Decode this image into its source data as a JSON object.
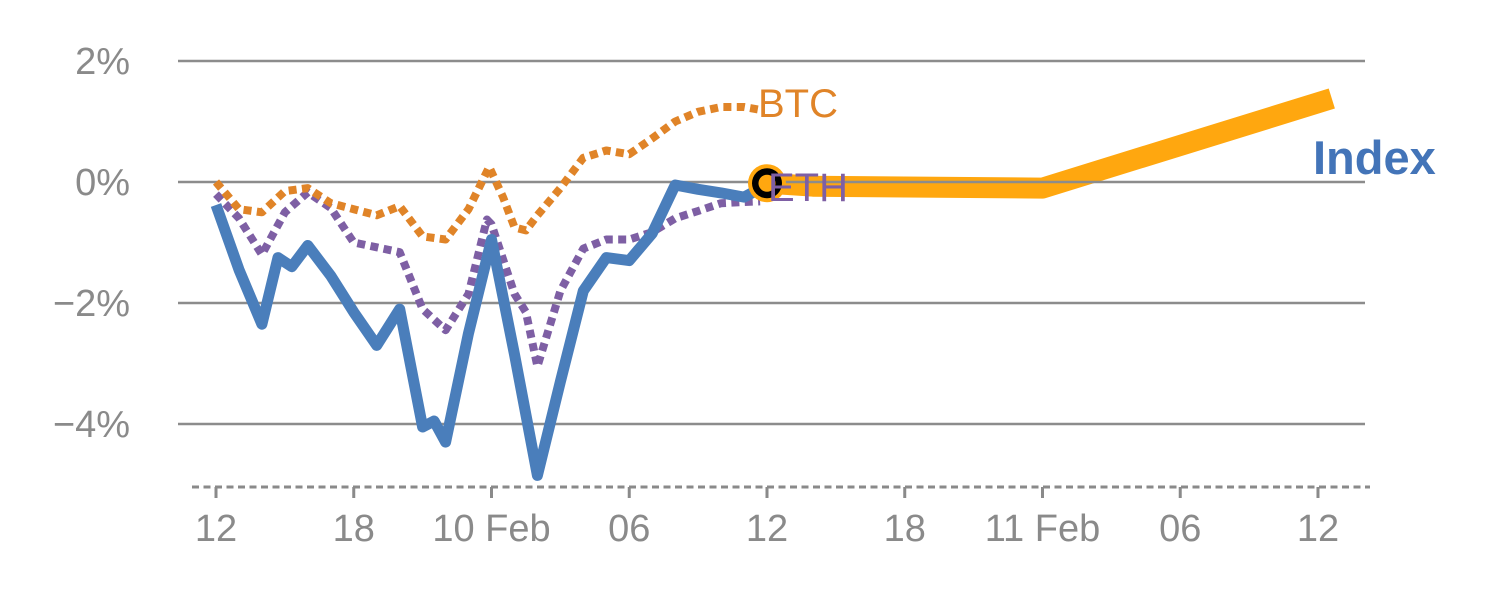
{
  "chart_data": {
    "type": "line",
    "title": "",
    "xlabel": "",
    "ylabel": "",
    "x_unit": "hours from first tick (12:00 9 Feb), 6h per major tick",
    "ylim": [
      -5.2,
      2.4
    ],
    "xlim": [
      0,
      48.6
    ],
    "grid": "horizontal",
    "legend_position": "end-of-line labels",
    "y_ticks": [
      {
        "v": 2,
        "label": "2%"
      },
      {
        "v": 0,
        "label": "0%"
      },
      {
        "v": -2,
        "label": "−2%"
      },
      {
        "v": -4,
        "label": "−4%"
      }
    ],
    "x_ticks": [
      {
        "t": 0,
        "label": "12"
      },
      {
        "t": 6,
        "label": "18"
      },
      {
        "t": 12,
        "label": "10 Feb"
      },
      {
        "t": 18,
        "label": "06"
      },
      {
        "t": 24,
        "label": "12"
      },
      {
        "t": 30,
        "label": "18"
      },
      {
        "t": 36,
        "label": "11 Feb"
      },
      {
        "t": 42,
        "label": "06"
      },
      {
        "t": 48,
        "label": "12"
      }
    ],
    "series": [
      {
        "name": "Index",
        "style": "solid",
        "color": "#4A7EBB",
        "width": 11,
        "points": [
          [
            0,
            -0.38
          ],
          [
            1,
            -1.45
          ],
          [
            2,
            -2.35
          ],
          [
            2.7,
            -1.25
          ],
          [
            3.3,
            -1.4
          ],
          [
            4,
            -1.05
          ],
          [
            5,
            -1.55
          ],
          [
            6,
            -2.15
          ],
          [
            7,
            -2.7
          ],
          [
            8,
            -2.1
          ],
          [
            9,
            -4.05
          ],
          [
            9.5,
            -3.95
          ],
          [
            10,
            -4.3
          ],
          [
            11,
            -2.5
          ],
          [
            12,
            -0.95
          ],
          [
            13,
            -2.85
          ],
          [
            14,
            -4.85
          ],
          [
            15,
            -3.3
          ],
          [
            16,
            -1.8
          ],
          [
            17,
            -1.25
          ],
          [
            18,
            -1.3
          ],
          [
            19,
            -0.85
          ],
          [
            20,
            -0.05
          ],
          [
            21,
            -0.12
          ],
          [
            22,
            -0.18
          ],
          [
            23,
            -0.25
          ],
          [
            24,
            -0.05
          ]
        ]
      },
      {
        "name": "BTC",
        "style": "dotted",
        "color": "#E08428",
        "width": 8,
        "points": [
          [
            0,
            0
          ],
          [
            1,
            -0.45
          ],
          [
            2,
            -0.5
          ],
          [
            3,
            -0.15
          ],
          [
            4,
            -0.1
          ],
          [
            5,
            -0.35
          ],
          [
            6,
            -0.45
          ],
          [
            7,
            -0.55
          ],
          [
            8,
            -0.4
          ],
          [
            9,
            -0.9
          ],
          [
            10,
            -0.95
          ],
          [
            11,
            -0.45
          ],
          [
            11.9,
            0.25
          ],
          [
            12.5,
            -0.25
          ],
          [
            13,
            -0.75
          ],
          [
            13.5,
            -0.8
          ],
          [
            14,
            -0.55
          ],
          [
            15,
            -0.1
          ],
          [
            16,
            0.4
          ],
          [
            17,
            0.52
          ],
          [
            18,
            0.46
          ],
          [
            19,
            0.72
          ],
          [
            20,
            1.0
          ],
          [
            21,
            1.16
          ],
          [
            22,
            1.24
          ],
          [
            23,
            1.24
          ],
          [
            23.6,
            1.2
          ]
        ]
      },
      {
        "name": "ETH",
        "style": "dotted",
        "color": "#7E5FA4",
        "width": 8,
        "points": [
          [
            0,
            -0.2
          ],
          [
            1,
            -0.6
          ],
          [
            2,
            -1.2
          ],
          [
            3,
            -0.5
          ],
          [
            4,
            -0.17
          ],
          [
            5,
            -0.43
          ],
          [
            6,
            -1.0
          ],
          [
            7,
            -1.08
          ],
          [
            8,
            -1.16
          ],
          [
            9,
            -2.1
          ],
          [
            10,
            -2.45
          ],
          [
            11,
            -1.85
          ],
          [
            11.8,
            -0.62
          ],
          [
            12,
            -0.7
          ],
          [
            13,
            -1.85
          ],
          [
            13.5,
            -2.15
          ],
          [
            14,
            -3.05
          ],
          [
            15,
            -1.8
          ],
          [
            16,
            -1.1
          ],
          [
            17,
            -0.95
          ],
          [
            18,
            -0.95
          ],
          [
            19,
            -0.83
          ],
          [
            20,
            -0.6
          ],
          [
            21,
            -0.48
          ],
          [
            22,
            -0.35
          ],
          [
            23,
            -0.33
          ],
          [
            23.7,
            -0.32
          ]
        ]
      },
      {
        "name": "Index forecast band",
        "style": "band",
        "color": "#FFA70F",
        "width": 21,
        "points": [
          [
            24,
            -0.02
          ],
          [
            26,
            -0.07
          ],
          [
            36,
            -0.1
          ],
          [
            48.6,
            1.38
          ]
        ]
      }
    ],
    "marker": {
      "t": 24,
      "v": -0.02,
      "type": "ring",
      "halo_color": "#FFA70F",
      "ring_color": "#000000",
      "fill_color": "#FFA70F"
    },
    "series_labels": {
      "btc": "BTC",
      "eth": "ETH",
      "index": "Index"
    },
    "label_colors": {
      "btc": "#E08428",
      "eth": "#7E5FA4",
      "index": "#4374B8"
    },
    "axis_color": "#8C8C8C",
    "tick_label_color": "#8a8a8a"
  }
}
